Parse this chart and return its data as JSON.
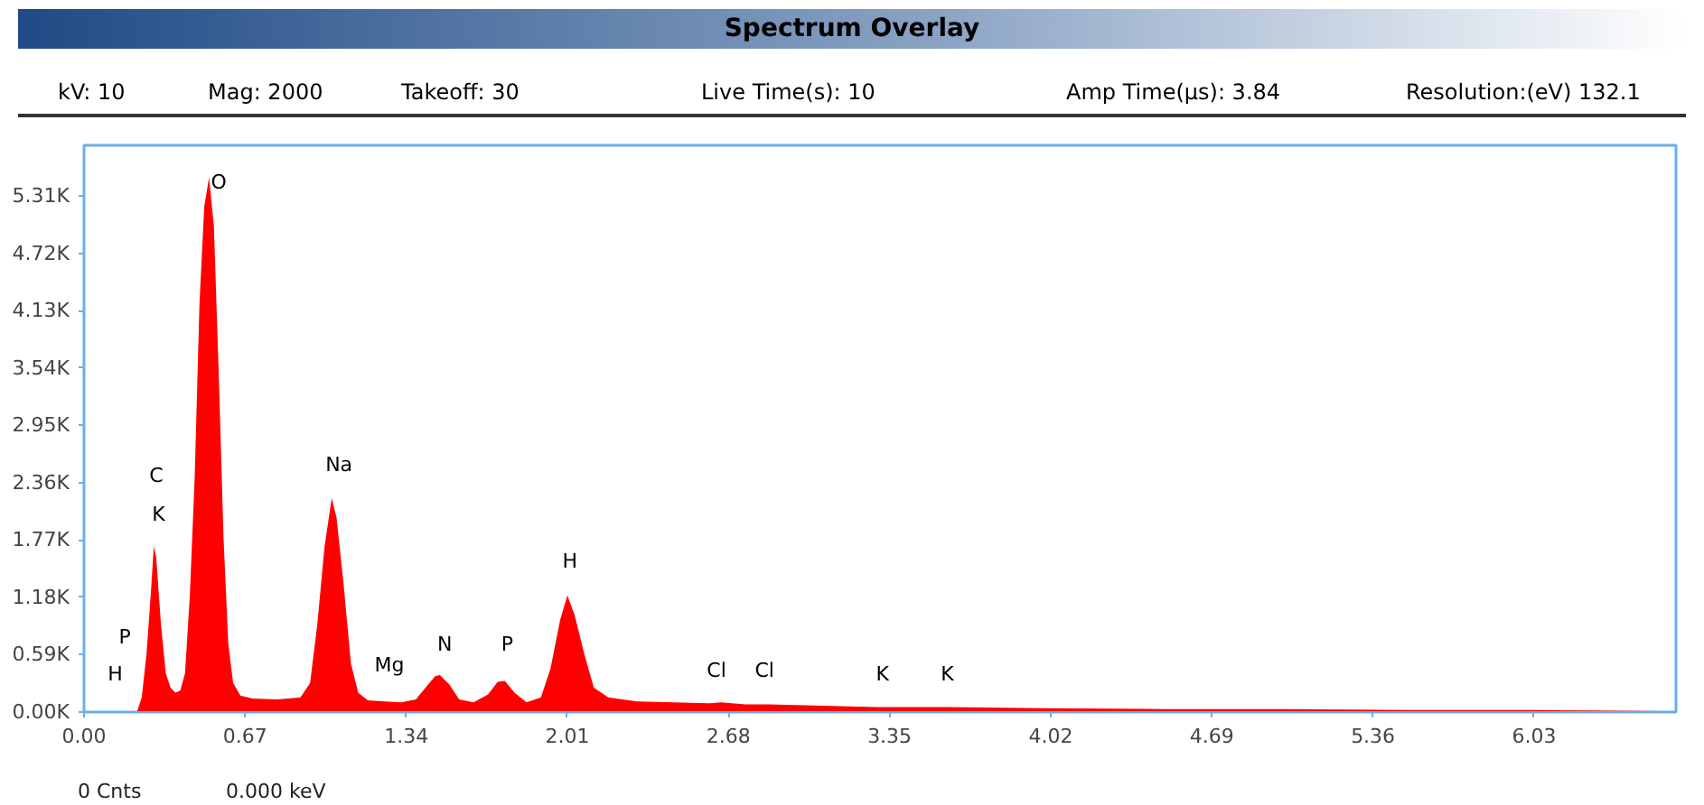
{
  "chart_data": {
    "type": "area",
    "title": "Spectrum Overlay",
    "x": [
      0.22,
      0.24,
      0.26,
      0.28,
      0.29,
      0.3,
      0.32,
      0.34,
      0.36,
      0.38,
      0.4,
      0.42,
      0.44,
      0.46,
      0.48,
      0.5,
      0.52,
      0.54,
      0.56,
      0.58,
      0.6,
      0.62,
      0.65,
      0.7,
      0.8,
      0.85,
      0.9,
      0.94,
      0.97,
      1.0,
      1.03,
      1.05,
      1.08,
      1.11,
      1.14,
      1.18,
      1.25,
      1.32,
      1.38,
      1.42,
      1.46,
      1.48,
      1.52,
      1.56,
      1.62,
      1.68,
      1.72,
      1.75,
      1.79,
      1.84,
      1.9,
      1.94,
      1.98,
      2.01,
      2.04,
      2.08,
      2.12,
      2.18,
      2.3,
      2.45,
      2.6,
      2.65,
      2.75,
      2.85,
      3.0,
      3.3,
      3.6,
      4.0,
      4.5,
      5.0,
      5.5,
      6.0,
      6.55
    ],
    "series": [
      {
        "color": "#ff0000",
        "values": [
          0,
          150,
          600,
          1300,
          1700,
          1600,
          900,
          400,
          250,
          200,
          220,
          400,
          1200,
          2400,
          4200,
          5200,
          5500,
          5000,
          3500,
          1800,
          700,
          300,
          170,
          140,
          130,
          140,
          150,
          300,
          900,
          1700,
          2200,
          2000,
          1300,
          500,
          200,
          120,
          110,
          100,
          130,
          250,
          370,
          380,
          280,
          130,
          100,
          180,
          310,
          320,
          200,
          100,
          150,
          450,
          950,
          1200,
          1000,
          600,
          250,
          150,
          110,
          100,
          90,
          100,
          80,
          80,
          70,
          50,
          50,
          40,
          30,
          30,
          20,
          20,
          10
        ]
      }
    ],
    "xlim": [
      0,
      6.62
    ],
    "ylim": [
      0,
      5830
    ],
    "xticks": [
      {
        "value": 0,
        "label": "0.00"
      },
      0.67,
      1.34,
      2.01,
      2.68,
      3.35,
      4.02,
      4.69,
      5.36,
      6.03
    ],
    "yticks": [
      {
        "value": 0,
        "label": "0.00K"
      },
      {
        "value": 590,
        "label": "0.59K"
      },
      {
        "value": 1180,
        "label": "1.18K"
      },
      {
        "value": 1770,
        "label": "1.77K"
      },
      {
        "value": 2360,
        "label": "2.36K"
      },
      {
        "value": 2950,
        "label": "2.95K"
      },
      {
        "value": 3540,
        "label": "3.54K"
      },
      {
        "value": 4130,
        "label": "4.13K"
      },
      {
        "value": 4720,
        "label": "4.72K"
      },
      {
        "value": 5310,
        "label": "5.31K"
      }
    ],
    "grid": false,
    "annotations": [
      "kV: 10",
      "Mag: 2000",
      "Takeoff: 30",
      "Live Time(s): 10",
      "Amp Time(μs): 3.84",
      "Resolution:(eV) 132.1",
      "0 Cnts",
      "0.000 keV",
      "O",
      "C",
      "K",
      "Na",
      "Mg",
      "N",
      "P",
      "H",
      "Cl",
      "Cl",
      "K",
      "K",
      "P",
      "H"
    ]
  }
}
